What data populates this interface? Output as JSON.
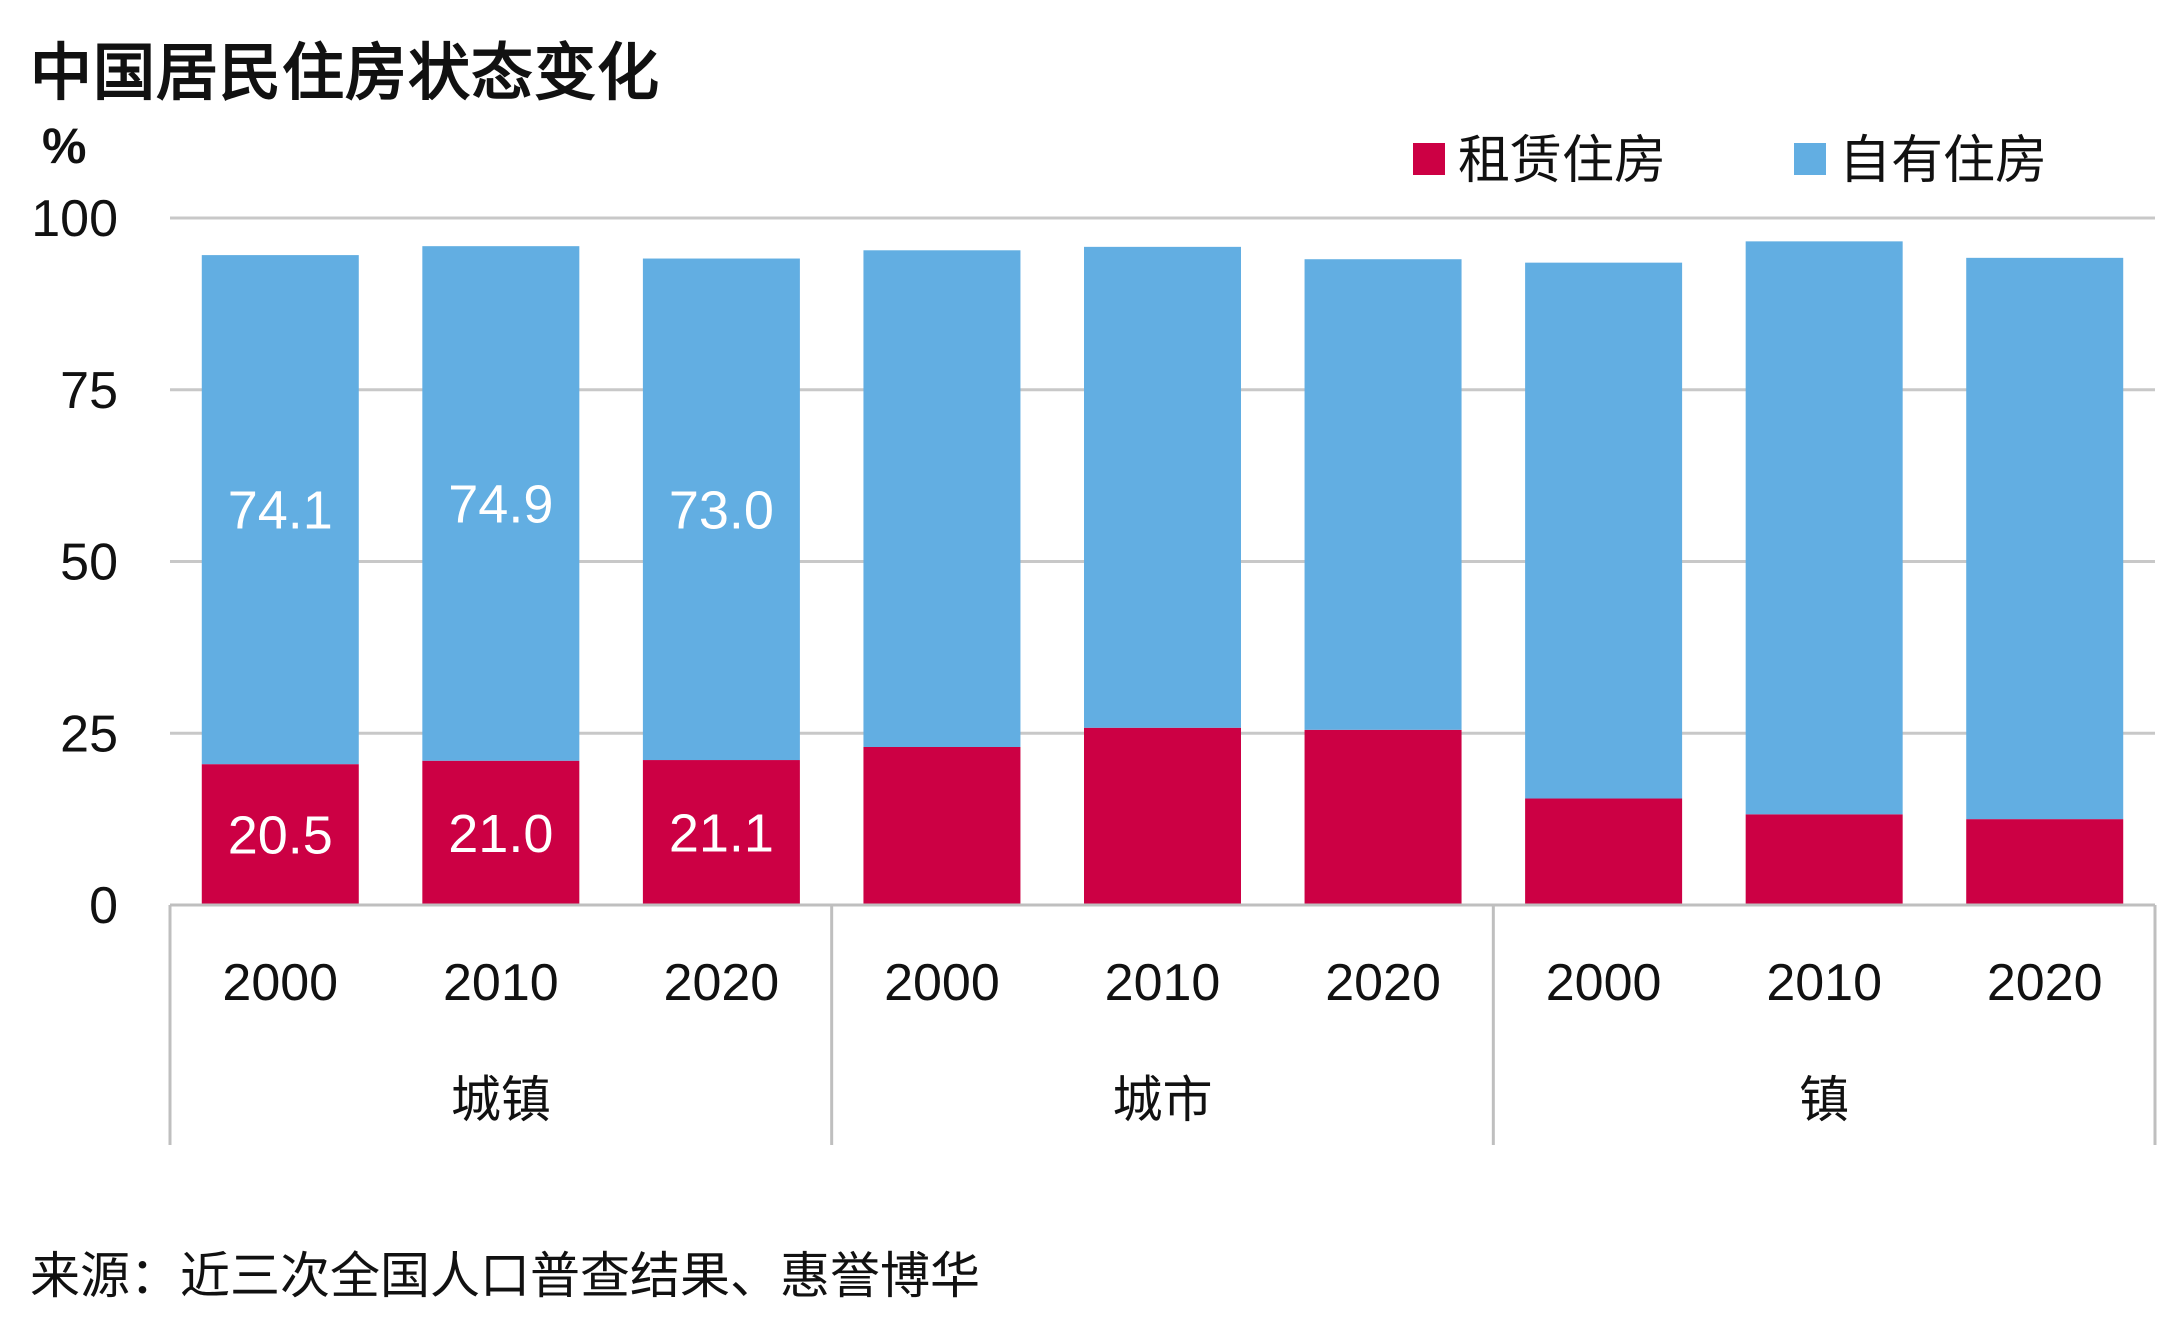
{
  "title": "中国居民住房状态变化",
  "source": "来源：近三次全国人口普查结果、惠誉博华",
  "unit": "%",
  "colors": {
    "rent": "#CC0044",
    "own": "#62AEE2",
    "grid": "#C8C8C8",
    "axis": "#BFBFBF"
  },
  "chart_data": {
    "type": "bar",
    "stacked": true,
    "title": "中国居民住房状态变化",
    "ylabel": "%",
    "ylim": [
      0,
      100
    ],
    "yticks": [
      0,
      25,
      50,
      75,
      100
    ],
    "grid": true,
    "legend": "top-right",
    "groups": [
      {
        "name": "城镇",
        "categories": [
          "2000",
          "2010",
          "2020"
        ]
      },
      {
        "name": "城市",
        "categories": [
          "2000",
          "2010",
          "2020"
        ]
      },
      {
        "name": "镇",
        "categories": [
          "2000",
          "2010",
          "2020"
        ]
      }
    ],
    "series": [
      {
        "name": "租赁住房",
        "color": "#CC0044",
        "values": [
          20.5,
          21.0,
          21.1,
          23.0,
          25.8,
          25.5,
          15.5,
          13.2,
          12.5
        ],
        "labels": [
          "20.5",
          "21.0",
          "21.1",
          "",
          "",
          "",
          "",
          "",
          ""
        ]
      },
      {
        "name": "自有住房",
        "color": "#62AEE2",
        "values": [
          74.1,
          74.9,
          73.0,
          72.3,
          70.0,
          68.5,
          78.0,
          83.4,
          81.7
        ],
        "labels": [
          "74.1",
          "74.9",
          "73.0",
          "",
          "",
          "",
          "",
          "",
          ""
        ]
      }
    ]
  }
}
